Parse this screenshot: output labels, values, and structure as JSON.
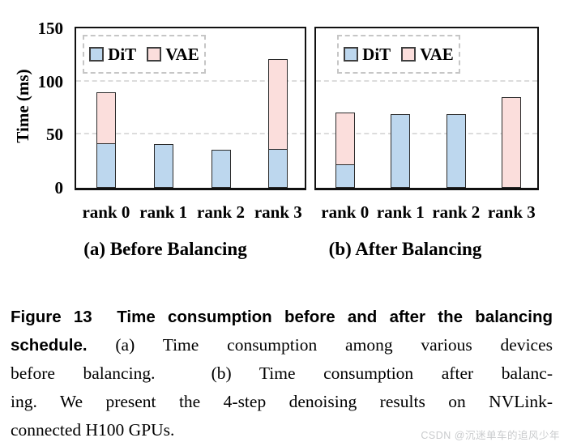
{
  "chart_data": [
    {
      "type": "bar",
      "stacked": true,
      "title": "(a) Before Balancing",
      "categories": [
        "rank 0",
        "rank 1",
        "rank 2",
        "rank 3"
      ],
      "series": [
        {
          "name": "DiT",
          "color": "#BDD7EE",
          "values": [
            41,
            41,
            36,
            36
          ]
        },
        {
          "name": "VAE",
          "color": "#FBDEDC",
          "values": [
            49,
            0,
            0,
            85
          ]
        }
      ],
      "xlabel": "",
      "ylabel": "Time (ms)",
      "ylim": [
        0,
        150
      ],
      "yticks": [
        0,
        50,
        100,
        150
      ],
      "gridlines": [
        50,
        100
      ],
      "grid_style": "dashed",
      "legend_position": "top-left-dashed-box",
      "bar_border_color": "#2b2b2b",
      "axis_color": "#111111"
    },
    {
      "type": "bar",
      "stacked": true,
      "title": "(b) After Balancing",
      "categories": [
        "rank 0",
        "rank 1",
        "rank 2",
        "rank 3"
      ],
      "series": [
        {
          "name": "DiT",
          "color": "#BDD7EE",
          "values": [
            21,
            69,
            69,
            0
          ]
        },
        {
          "name": "VAE",
          "color": "#FBDEDC",
          "values": [
            50,
            0,
            0,
            85
          ]
        }
      ],
      "xlabel": "",
      "ylabel": "Time (ms)",
      "ylim": [
        0,
        150
      ],
      "yticks": [
        0,
        50,
        100,
        150
      ],
      "gridlines": [
        50,
        100
      ],
      "grid_style": "dashed",
      "legend_position": "top-left-dashed-box",
      "bar_border_color": "#2b2b2b",
      "axis_color": "#111111"
    }
  ],
  "caption": {
    "lines": [
      {
        "bold": "Figure 13  Time consumption before and after the balancing",
        "serif": ""
      },
      {
        "bold": "schedule.",
        "serif": " (a) Time consumption among various devices"
      },
      {
        "bold": "",
        "serif": "before balancing.  (b) Time consumption after balanc-"
      },
      {
        "bold": "",
        "serif": "ing. We present the 4-step denoising results on NVLink-"
      },
      {
        "bold": "",
        "serif": "connected H100 GPUs."
      }
    ]
  },
  "watermark": "CSDN @沉迷单车的追风少年"
}
